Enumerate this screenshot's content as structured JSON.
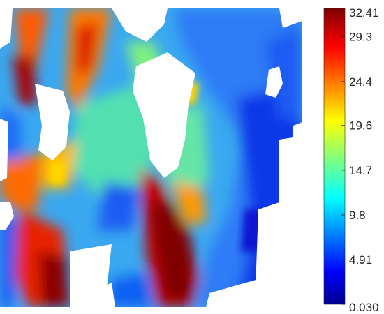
{
  "chart_data": {
    "type": "heatmap",
    "title": "",
    "xlabel": "",
    "ylabel": "",
    "colormap": "jet",
    "colorbar": {
      "min": 0.03,
      "max": 32.41,
      "ticks": [
        {
          "value": 32.41,
          "label": "32.41"
        },
        {
          "value": 29.3,
          "label": "29.3"
        },
        {
          "value": 24.4,
          "label": "24.4"
        },
        {
          "value": 19.6,
          "label": "19.6"
        },
        {
          "value": 14.7,
          "label": "14.7"
        },
        {
          "value": 9.8,
          "label": "9.8"
        },
        {
          "value": 4.91,
          "label": "4.91"
        },
        {
          "value": 0.03,
          "label": "0.030"
        }
      ]
    },
    "regions_note_colors": {
      "background": "#ffffff",
      "high": "#800000",
      "low": "#00008f"
    }
  }
}
